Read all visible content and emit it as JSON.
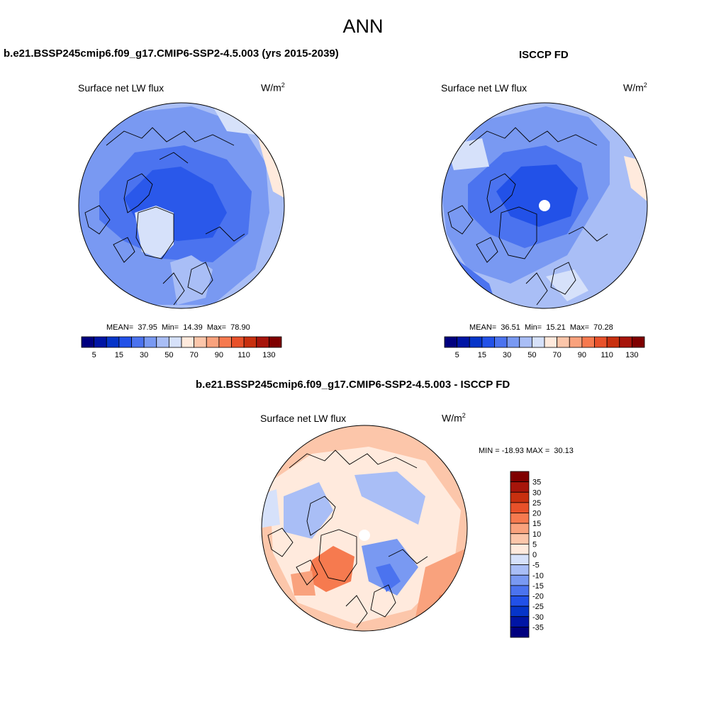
{
  "page": {
    "title": "ANN"
  },
  "colors": {
    "cmap": [
      "#00007f",
      "#0015a5",
      "#0635c9",
      "#2251e8",
      "#4b73ef",
      "#7999f2",
      "#a9bef6",
      "#d6e1fa",
      "#ffeadd",
      "#fcc6aa",
      "#f9a27d",
      "#f67a4f",
      "#e8512a",
      "#c8300f",
      "#a7150b",
      "#7f0000"
    ]
  },
  "panels": {
    "model": {
      "title": "b.e21.BSSP245cmip6.f09_g17.CMIP6-SSP2-4.5.003 (yrs 2015-2039)",
      "variable": "Surface net LW flux",
      "units": "W/m",
      "units_sup": "2",
      "stats": "MEAN=  37.95  Min=  14.39  Max=  78.90"
    },
    "obs": {
      "title": "ISCCP FD",
      "variable": "Surface net LW flux",
      "units": "W/m",
      "units_sup": "2",
      "stats": "MEAN=  36.51  Min=  15.21  Max=  70.28"
    },
    "diff": {
      "title": "b.e21.BSSP245cmip6.f09_g17.CMIP6-SSP2-4.5.003 - ISCCP FD",
      "variable": "Surface net LW flux",
      "units": "W/m",
      "units_sup": "2",
      "stats": "MIN = -18.93 MAX =  30.13"
    }
  },
  "chart_data": [
    {
      "type": "heatmap",
      "projection": "north-polar-stereographic",
      "title": "b.e21.BSSP245cmip6.f09_g17.CMIP6-SSP2-4.5.003 (yrs 2015-2039)",
      "variable": "Surface net LW flux",
      "units": "W/m2",
      "mean": 37.95,
      "min": 14.39,
      "max": 78.9,
      "colorbar_levels": [
        5,
        10,
        15,
        20,
        30,
        40,
        50,
        60,
        70,
        80,
        90,
        100,
        110,
        120,
        130
      ],
      "colorbar_tick_labels": [
        "5",
        "15",
        "30",
        "50",
        "70",
        "90",
        "110",
        "130"
      ]
    },
    {
      "type": "heatmap",
      "projection": "north-polar-stereographic",
      "title": "ISCCP FD",
      "variable": "Surface net LW flux",
      "units": "W/m2",
      "mean": 36.51,
      "min": 15.21,
      "max": 70.28,
      "colorbar_levels": [
        5,
        10,
        15,
        20,
        30,
        40,
        50,
        60,
        70,
        80,
        90,
        100,
        110,
        120,
        130
      ],
      "colorbar_tick_labels": [
        "5",
        "15",
        "30",
        "50",
        "70",
        "90",
        "110",
        "130"
      ]
    },
    {
      "type": "heatmap",
      "projection": "north-polar-stereographic",
      "title": "b.e21.BSSP245cmip6.f09_g17.CMIP6-SSP2-4.5.003 - ISCCP FD",
      "variable": "Surface net LW flux",
      "units": "W/m2",
      "min": -18.93,
      "max": 30.13,
      "colorbar_levels": [
        35,
        30,
        25,
        20,
        15,
        10,
        5,
        0,
        -5,
        -10,
        -15,
        -20,
        -25,
        -30,
        -35
      ],
      "colorbar_tick_labels": [
        "35",
        "30",
        "25",
        "20",
        "15",
        "10",
        "5",
        "0",
        "-5",
        "-10",
        "-15",
        "-20",
        "-25",
        "-30",
        "-35"
      ],
      "colorbar_colors": [
        "#7f0000",
        "#a7150b",
        "#c8300f",
        "#e8512a",
        "#f67a4f",
        "#f9a27d",
        "#fcc6aa",
        "#ffeadd",
        "#d6e1fa",
        "#a9bef6",
        "#7999f2",
        "#4b73ef",
        "#2251e8",
        "#0635c9",
        "#0015a5",
        "#00007f"
      ]
    }
  ]
}
